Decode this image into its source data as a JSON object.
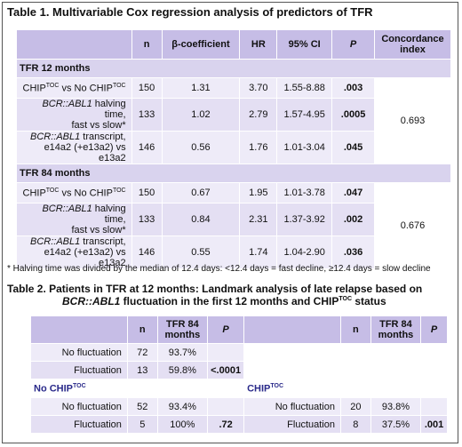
{
  "table1": {
    "title": "Table 1. Multivariable Cox regression analysis of predictors of TFR",
    "headers": {
      "n": "n",
      "beta": "β-coefficient",
      "hr": "HR",
      "ci": "95% CI",
      "p": "P",
      "conc": "Concordance index"
    },
    "section12": {
      "label": "TFR 12 months",
      "concordance": "0.693",
      "rows": [
        {
          "n": "150",
          "beta": "1.31",
          "hr": "3.70",
          "ci": "1.55-8.88",
          "p": ".003"
        },
        {
          "n": "133",
          "beta": "1.02",
          "hr": "2.79",
          "ci": "1.57-4.95",
          "p": ".0005"
        },
        {
          "n": "146",
          "beta": "0.56",
          "hr": "1.76",
          "ci": "1.01-3.04",
          "p": ".045"
        }
      ]
    },
    "section84": {
      "label": "TFR 84 months",
      "concordance": "0.676",
      "rows": [
        {
          "n": "150",
          "beta": "0.67",
          "hr": "1.95",
          "ci": "1.01-3.78",
          "p": ".047"
        },
        {
          "n": "133",
          "beta": "0.84",
          "hr": "2.31",
          "ci": "1.37-3.92",
          "p": ".002"
        },
        {
          "n": "146",
          "beta": "0.55",
          "hr": "1.74",
          "ci": "1.04-2.90",
          "p": ".036"
        }
      ]
    },
    "labels": {
      "chip_a": "CHIP",
      "chip_sup": "TOC",
      "chip_b": " vs No CHIP",
      "bcr": "BCR::ABL1",
      "halving_rest": " halving time,",
      "fast_slow": "fast vs slow*",
      "transcript_rest": " transcript,",
      "transcript_detail": "e14a2 (+e13a2) vs e13a2"
    }
  },
  "footnote": "* Halving time was divided by the median of 12.4 days: <12.4 days = fast decline, ≥12.4 days = slow decline",
  "table2": {
    "title_line1": "Table 2. Patients in TFR at 12 months: Landmark analysis of late relapse based on",
    "title_bcr": "BCR::ABL1",
    "title_rest": " fluctuation in the first 12 months and CHIP",
    "title_sup": "TOC",
    "title_end": " status",
    "headers": {
      "n": "n",
      "tfr": "TFR 84 months",
      "p": "P"
    },
    "overall": [
      {
        "label": "No fluctuation",
        "n": "72",
        "tfr": "93.7%",
        "p": ""
      },
      {
        "label": "Fluctuation",
        "n": "13",
        "tfr": "59.8%",
        "p": "<.0001"
      }
    ],
    "no_chip_label": "No CHIP",
    "chip_label": "CHIP",
    "sup": "TOC",
    "no_chip": [
      {
        "label": "No fluctuation",
        "n": "52",
        "tfr": "93.4%",
        "p": ""
      },
      {
        "label": "Fluctuation",
        "n": "5",
        "tfr": "100%",
        "p": ".72"
      }
    ],
    "chip": [
      {
        "label": "No fluctuation",
        "n": "20",
        "tfr": "93.8%",
        "p": ""
      },
      {
        "label": "Fluctuation",
        "n": "8",
        "tfr": "37.5%",
        "p": ".001"
      }
    ]
  }
}
